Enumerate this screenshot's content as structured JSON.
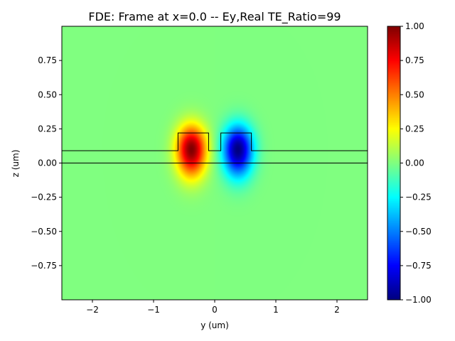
{
  "chart_data": {
    "type": "heatmap",
    "title": "FDE: Frame at x=0.0 -- Ey,Real TE_Ratio=99",
    "xlabel": "y (um)",
    "ylabel": "z (um)",
    "xlim": [
      -2.5,
      2.5
    ],
    "ylim": [
      -1.0,
      1.0
    ],
    "x_ticks": [
      -2,
      -1,
      0,
      1,
      2
    ],
    "x_tick_labels": [
      "−2",
      "−1",
      "0",
      "1",
      "2"
    ],
    "y_ticks": [
      0.75,
      0.5,
      0.25,
      0.0,
      -0.25,
      -0.5,
      -0.75
    ],
    "y_tick_labels": [
      "0.75",
      "0.50",
      "0.25",
      "0.00",
      "−0.25",
      "−0.50",
      "−0.75"
    ],
    "colormap": "jet",
    "colorbar": {
      "range": [
        -1.0,
        1.0
      ],
      "ticks": [
        1.0,
        0.75,
        0.5,
        0.25,
        0.0,
        -0.25,
        -0.5,
        -0.75,
        -1.0
      ],
      "tick_labels": [
        "1.00",
        "0.75",
        "0.50",
        "0.25",
        "0.00",
        "−0.25",
        "−0.50",
        "−0.75",
        "−1.00"
      ]
    },
    "field_lobes": [
      {
        "center_y": -0.38,
        "center_z": 0.1,
        "amplitude": 1.0
      },
      {
        "center_y": 0.38,
        "center_z": 0.1,
        "amplitude": -1.0
      }
    ],
    "structure_outline": {
      "substrate_top": 0.0,
      "slab_top": 0.09,
      "ridges": [
        {
          "y_start": -0.6,
          "y_end": -0.1,
          "z_top": 0.22
        },
        {
          "y_start": 0.1,
          "y_end": 0.6,
          "z_top": 0.22
        }
      ]
    }
  }
}
